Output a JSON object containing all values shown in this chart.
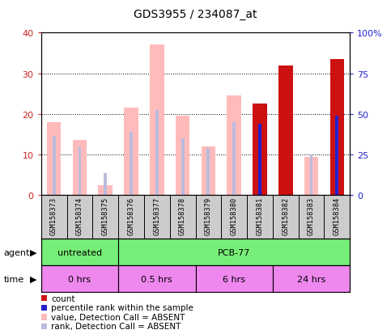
{
  "title": "GDS3955 / 234087_at",
  "samples": [
    "GSM158373",
    "GSM158374",
    "GSM158375",
    "GSM158376",
    "GSM158377",
    "GSM158378",
    "GSM158379",
    "GSM158380",
    "GSM158381",
    "GSM158382",
    "GSM158383",
    "GSM158384"
  ],
  "value_absent": [
    18.0,
    13.5,
    2.5,
    21.5,
    37.0,
    19.5,
    12.0,
    24.5,
    null,
    null,
    9.5,
    null
  ],
  "rank_absent": [
    14.5,
    12.0,
    5.5,
    15.5,
    21.0,
    14.0,
    11.5,
    18.0,
    null,
    null,
    10.0,
    null
  ],
  "count_present": [
    null,
    null,
    null,
    null,
    null,
    null,
    null,
    null,
    22.5,
    32.0,
    null,
    33.5
  ],
  "rank_present": [
    null,
    null,
    null,
    null,
    null,
    null,
    null,
    null,
    17.5,
    null,
    null,
    19.5
  ],
  "ylim_left": [
    0,
    40
  ],
  "ylim_right": [
    0,
    100
  ],
  "yticks_left": [
    0,
    10,
    20,
    30,
    40
  ],
  "yticks_right": [
    0,
    25,
    50,
    75,
    100
  ],
  "yticklabels_right": [
    "0",
    "25",
    "50",
    "75",
    "100%"
  ],
  "color_pink": "#ffbbbb",
  "color_pink_rank": "#bbbbdd",
  "color_red": "#cc1111",
  "color_blue": "#2222cc",
  "left_tick_color": "#cc2222",
  "right_tick_color": "#2222cc",
  "agent_green": "#77ee77",
  "time_pink": "#ee88ee",
  "gray_box": "#cccccc"
}
